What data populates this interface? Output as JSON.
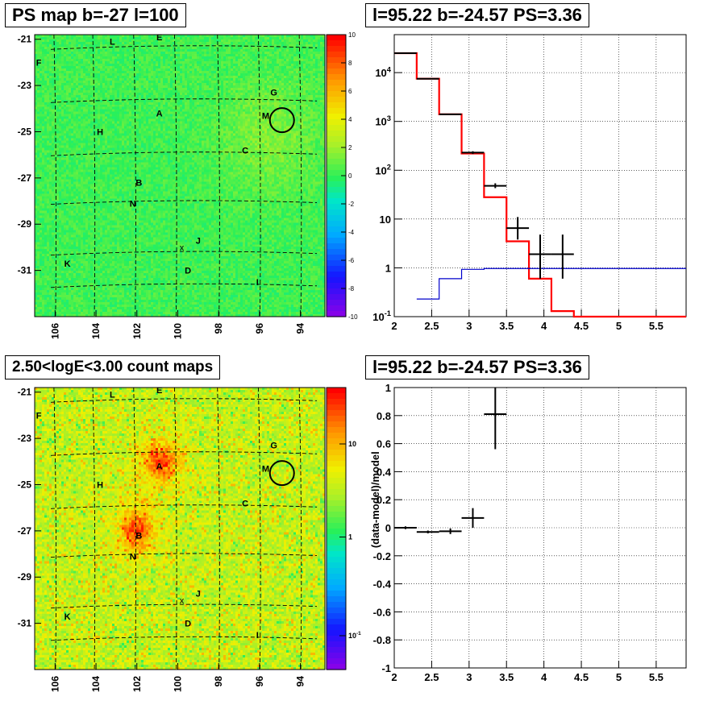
{
  "chart_data": [
    {
      "type": "heatmap",
      "title": "PS map b=-27 l=100",
      "xlabel": "",
      "ylabel": "",
      "xlim": [
        107,
        92.8
      ],
      "ylim": [
        -33,
        -20.8
      ],
      "x_ticks": [
        "106",
        "104",
        "102",
        "100",
        "98",
        "96",
        "94"
      ],
      "y_ticks": [
        "-21",
        "-23",
        "-25",
        "-27",
        "-29",
        "-31"
      ],
      "colorbar": {
        "scale": "linear",
        "range": [
          -10,
          10
        ],
        "ticks": [
          "10",
          "8",
          "6",
          "4",
          "2",
          "0",
          "-2",
          "-4",
          "-6",
          "-8",
          "-10"
        ]
      },
      "markers": [
        {
          "label": "L",
          "x": 103.2,
          "y": -21.1
        },
        {
          "label": "E",
          "x": 100.9,
          "y": -20.9
        },
        {
          "label": "F",
          "x": 106.8,
          "y": -22.0
        },
        {
          "label": "G",
          "x": 95.3,
          "y": -23.3
        },
        {
          "label": "A",
          "x": 100.9,
          "y": -24.2
        },
        {
          "label": "M",
          "x": 95.7,
          "y": -24.3
        },
        {
          "label": "H",
          "x": 103.8,
          "y": -25.0
        },
        {
          "label": "C",
          "x": 96.7,
          "y": -25.8
        },
        {
          "label": "B",
          "x": 101.9,
          "y": -27.2
        },
        {
          "label": "N",
          "x": 102.2,
          "y": -28.1
        },
        {
          "label": "J",
          "x": 99.0,
          "y": -29.7
        },
        {
          "label": "x",
          "x": 99.8,
          "y": -30.0
        },
        {
          "label": "K",
          "x": 105.4,
          "y": -30.7
        },
        {
          "label": "D",
          "x": 99.5,
          "y": -31.0
        },
        {
          "label": "I",
          "x": 96.1,
          "y": -31.5
        }
      ],
      "circle": {
        "x": 94.9,
        "y": -24.5
      }
    },
    {
      "type": "line",
      "title": "l=95.22 b=-24.57 PS=3.36",
      "xlabel": "",
      "ylabel": "",
      "xlim": [
        2,
        5.9
      ],
      "ylim": [
        0.1,
        60000
      ],
      "yscale": "log",
      "x_ticks": [
        "2",
        "2.5",
        "3",
        "3.5",
        "4",
        "4.5",
        "5",
        "5.5"
      ],
      "y_ticks": [
        "10^-1",
        "1",
        "10",
        "10^2",
        "10^3",
        "10^4"
      ],
      "grid": true,
      "series": [
        {
          "style": "step",
          "color": "#ff0000",
          "edges": [
            2,
            2.3,
            2.6,
            2.9,
            3.2,
            3.5,
            3.8,
            4.1,
            4.4,
            5.9
          ],
          "values": [
            25000,
            7500,
            1400,
            220,
            28,
            3.5,
            0.6,
            0.13,
            0.1
          ]
        },
        {
          "style": "step",
          "color": "#0000cc",
          "edges": [
            2.3,
            2.6,
            2.9,
            3.2,
            5.9
          ],
          "values": [
            0.23,
            0.6,
            0.93,
            0.97
          ]
        },
        {
          "style": "errorbars",
          "color": "#000000",
          "points": [
            {
              "x": 2.15,
              "y": 25000,
              "xerr": 0.15
            },
            {
              "x": 2.45,
              "y": 7500,
              "xerr": 0.15
            },
            {
              "x": 2.75,
              "y": 1400,
              "xerr": 0.15
            },
            {
              "x": 3.05,
              "y": 230,
              "xerr": 0.15,
              "ylo": 215,
              "yhi": 245
            },
            {
              "x": 3.35,
              "y": 48,
              "xerr": 0.15,
              "ylo": 43,
              "yhi": 54
            },
            {
              "x": 3.65,
              "y": 6.5,
              "xerr": 0.15,
              "ylo": 3.8,
              "yhi": 11
            },
            {
              "x": 3.95,
              "y": 1.9,
              "xerr": 0.15,
              "ylo": 0.6,
              "yhi": 4.8
            },
            {
              "x": 4.25,
              "y": 1.9,
              "xerr": 0.15,
              "ylo": 0.6,
              "yhi": 4.8
            }
          ]
        }
      ]
    },
    {
      "type": "heatmap",
      "title": "2.50<logE<3.00 count maps",
      "xlabel": "",
      "ylabel": "",
      "xlim": [
        107,
        92.8
      ],
      "ylim": [
        -33,
        -20.8
      ],
      "x_ticks": [
        "106",
        "104",
        "102",
        "100",
        "98",
        "96",
        "94"
      ],
      "y_ticks": [
        "-21",
        "-23",
        "-25",
        "-27",
        "-29",
        "-31"
      ],
      "colorbar": {
        "scale": "log",
        "ticks": [
          "10",
          "1",
          "10^-1"
        ]
      },
      "sources": [
        {
          "x": 100.8,
          "y": -24.0
        },
        {
          "x": 102.0,
          "y": -27.0
        }
      ],
      "markers": [
        {
          "label": "L",
          "x": 103.2,
          "y": -21.1
        },
        {
          "label": "E",
          "x": 100.9,
          "y": -20.9
        },
        {
          "label": "F",
          "x": 106.8,
          "y": -22.0
        },
        {
          "label": "G",
          "x": 95.3,
          "y": -23.3
        },
        {
          "label": "A",
          "x": 100.9,
          "y": -24.2
        },
        {
          "label": "M",
          "x": 95.7,
          "y": -24.3
        },
        {
          "label": "H",
          "x": 103.8,
          "y": -25.0
        },
        {
          "label": "C",
          "x": 96.7,
          "y": -25.8
        },
        {
          "label": "B",
          "x": 101.9,
          "y": -27.2
        },
        {
          "label": "N",
          "x": 102.2,
          "y": -28.1
        },
        {
          "label": "J",
          "x": 99.0,
          "y": -29.7
        },
        {
          "label": "x",
          "x": 99.8,
          "y": -30.0
        },
        {
          "label": "K",
          "x": 105.4,
          "y": -30.7
        },
        {
          "label": "D",
          "x": 99.5,
          "y": -31.0
        },
        {
          "label": "I",
          "x": 96.1,
          "y": -31.5
        }
      ],
      "circle": {
        "x": 94.9,
        "y": -24.5
      }
    },
    {
      "type": "scatter",
      "title": "l=95.22 b=-24.57 PS=3.36",
      "xlabel": "",
      "ylabel": "(data-model)/model",
      "xlim": [
        2,
        5.9
      ],
      "ylim": [
        -1,
        1
      ],
      "x_ticks": [
        "2",
        "2.5",
        "3",
        "3.5",
        "4",
        "4.5",
        "5",
        "5.5"
      ],
      "y_ticks": [
        "1",
        "0.8",
        "0.6",
        "0.4",
        "0.2",
        "0",
        "-0.2",
        "-0.4",
        "-0.6",
        "-0.8",
        "-1"
      ],
      "grid": true,
      "points": [
        {
          "x": 2.15,
          "y": 0.0,
          "xerr": 0.15,
          "ylo": -0.01,
          "yhi": 0.01
        },
        {
          "x": 2.45,
          "y": -0.03,
          "xerr": 0.15,
          "ylo": -0.04,
          "yhi": -0.02
        },
        {
          "x": 2.75,
          "y": -0.025,
          "xerr": 0.15,
          "ylo": -0.045,
          "yhi": -0.005
        },
        {
          "x": 3.05,
          "y": 0.07,
          "xerr": 0.15,
          "ylo": 0.0,
          "yhi": 0.14
        },
        {
          "x": 3.35,
          "y": 0.81,
          "xerr": 0.15,
          "ylo": 0.56,
          "yhi": 1.0
        }
      ]
    }
  ]
}
